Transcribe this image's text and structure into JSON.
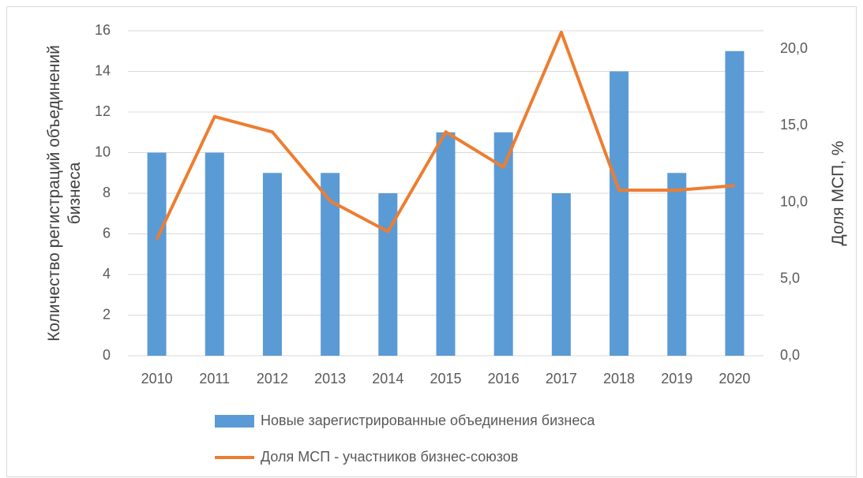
{
  "chart_data": {
    "type": "bar",
    "categories": [
      "2010",
      "2011",
      "2012",
      "2013",
      "2014",
      "2015",
      "2016",
      "2017",
      "2018",
      "2019",
      "2020"
    ],
    "series": [
      {
        "name": "Новые зарегистрированные объединения бизнеса",
        "type": "bar",
        "color": "#5b9bd5",
        "values": [
          10,
          10,
          9,
          9,
          8,
          11,
          11,
          8,
          14,
          9,
          15
        ]
      },
      {
        "name": "Доля МСП - участников бизнес-союзов",
        "type": "line",
        "axis": "y2",
        "color": "#ed7d31",
        "values": [
          7.6,
          15.6,
          14.6,
          10.1,
          8.1,
          14.6,
          12.3,
          21.1,
          10.8,
          10.8,
          11.1
        ]
      }
    ],
    "y_label": "Количество регистраций объединений бизнеса",
    "y2_label": "Доля МСП, %",
    "ylim": [
      0,
      16
    ],
    "yticks": [
      0,
      2,
      4,
      6,
      8,
      10,
      12,
      14,
      16
    ],
    "y2lim": [
      0,
      21.2
    ],
    "y2ticks": [
      {
        "value": 0,
        "label": "0,0"
      },
      {
        "value": 5,
        "label": "5,0"
      },
      {
        "value": 10,
        "label": "10,0"
      },
      {
        "value": 15,
        "label": "15,0"
      },
      {
        "value": 20,
        "label": "20,0"
      }
    ],
    "grid": true,
    "legend": "bottom"
  }
}
